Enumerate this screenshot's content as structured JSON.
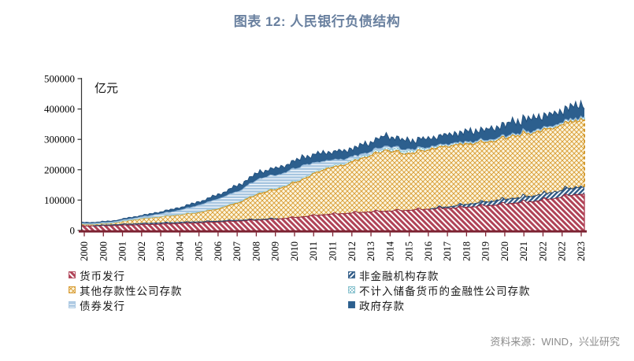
{
  "title": "图表 12: 人民银行负债结构",
  "unit_label": "亿元",
  "source": "资料来源：WIND，兴业研究",
  "colors": {
    "title_text": "#69809F",
    "source_text": "#8C8C8C",
    "x_axis": "#7B2130",
    "y_axis": "#333333",
    "plot_background": "#FFFFFF"
  },
  "chart_data": {
    "type": "area",
    "stacked": true,
    "title": "图表 12: 人民银行负债结构",
    "ylabel": "亿元",
    "ylim": [
      0,
      500000
    ],
    "y_ticks": [
      0,
      100000,
      200000,
      300000,
      400000,
      500000
    ],
    "x_years": [
      2000,
      2001,
      2002,
      2003,
      2004,
      2005,
      2006,
      2007,
      2008,
      2009,
      2010,
      2011,
      2012,
      2013,
      2014,
      2015,
      2016,
      2017,
      2018,
      2019,
      2020,
      2021,
      2022,
      2023
    ],
    "x_tick_labels": [
      "2000",
      "2000",
      "2001",
      "2002",
      "2003",
      "2004",
      "2005",
      "2006",
      "2007",
      "2008",
      "2009",
      "2010",
      "2011",
      "2011",
      "2012",
      "2013",
      "2014",
      "2015",
      "2016",
      "2017",
      "2018",
      "2019",
      "2020",
      "2021",
      "2022",
      "2022",
      "2023"
    ],
    "grid": false,
    "legend_position": "bottom",
    "legend_columns": [
      [
        0,
        2,
        4
      ],
      [
        1,
        3,
        5
      ]
    ],
    "series": [
      {
        "name": "货币发行",
        "key": "currency-issuance",
        "color": "#B04357",
        "edge_color": "#8E2B3F",
        "fill_pattern": "pat-red",
        "annual_values": [
          15000,
          16000,
          18000,
          20000,
          22000,
          24500,
          27500,
          31000,
          34500,
          38500,
          44500,
          51500,
          55500,
          60000,
          63500,
          66000,
          70000,
          73000,
          77000,
          82000,
          89000,
          95000,
          105000,
          118000
        ]
      },
      {
        "name": "非金融机构存款",
        "key": "nonfinancial-institution-deposits",
        "color": "#2F5A86",
        "edge_color": "#27486E",
        "fill_pattern": "pat-navy",
        "annual_values": [
          500,
          2500,
          3500,
          4000,
          4000,
          3500,
          3000,
          2500,
          1500,
          500,
          200,
          200,
          200,
          200,
          200,
          200,
          300,
          5000,
          10000,
          14000,
          16000,
          18500,
          21000,
          24000
        ]
      },
      {
        "name": "其他存款性公司存款",
        "key": "other-depository-corp-deposits",
        "color": "#D89A2F",
        "edge_color": "#D0921F",
        "fill_pattern": "pat-orange",
        "annual_values": [
          4500,
          5500,
          14000,
          19000,
          24000,
          30000,
          40000,
          58000,
          86000,
          100000,
          122000,
          148000,
          160000,
          180000,
          200000,
          185000,
          195000,
          200000,
          198000,
          196000,
          205000,
          207000,
          212000,
          220000
        ]
      },
      {
        "name": "不计入储备货币的金融性公司存款",
        "key": "financial-corp-deposits-excluded-from-reserve-money",
        "color": "#7FBECB",
        "edge_color": "#9ED0DA",
        "fill_pattern": "pat-teal",
        "annual_values": [
          500,
          700,
          800,
          1000,
          1200,
          1500,
          2000,
          3000,
          3500,
          4000,
          4500,
          5000,
          5500,
          6000,
          8000,
          9000,
          7000,
          6000,
          5500,
          5000,
          5000,
          5500,
          6000,
          6500
        ]
      },
      {
        "name": "债券发行",
        "key": "bond-issuance",
        "color": "#A6C5E0",
        "edge_color": "#8FB4D6",
        "fill_pattern": "pat-blue",
        "annual_values": [
          2500,
          3000,
          3500,
          7000,
          12000,
          21000,
          30500,
          35000,
          46000,
          42000,
          41000,
          23000,
          13000,
          7000,
          6000,
          4500,
          1000,
          800,
          1000,
          1200,
          1000,
          1000,
          1000,
          1000
        ]
      },
      {
        "name": "政府存款",
        "key": "government-deposits",
        "color": "#2C5F8E",
        "edge_color": "#24527F",
        "fill_pattern": "solid",
        "annual_values": [
          3000,
          3500,
          4500,
          6000,
          8500,
          11000,
          14000,
          20000,
          22000,
          23000,
          27000,
          28000,
          27000,
          30000,
          34000,
          30000,
          29000,
          31000,
          34000,
          35000,
          40000,
          43000,
          38000,
          42000
        ]
      }
    ]
  }
}
